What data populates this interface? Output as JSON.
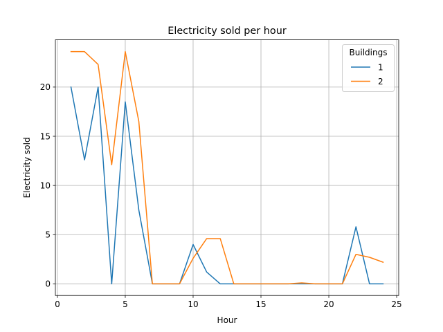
{
  "chart_data": {
    "type": "line",
    "title": "Electricity sold per hour",
    "xlabel": "Hour",
    "ylabel": "Electricity sold",
    "xlim": [
      -0.15,
      25.15
    ],
    "ylim": [
      -1.18,
      24.8
    ],
    "xticks": [
      0,
      5,
      10,
      15,
      20,
      25
    ],
    "yticks": [
      0,
      5,
      10,
      15,
      20
    ],
    "grid": true,
    "legend": {
      "title": "Buildings",
      "placement": "upper right"
    },
    "x": [
      1,
      2,
      3,
      4,
      5,
      6,
      7,
      8,
      9,
      10,
      11,
      12,
      13,
      14,
      15,
      16,
      17,
      18,
      19,
      20,
      21,
      22,
      23,
      24
    ],
    "series": [
      {
        "name": "1",
        "color": "#1f77b4",
        "values": [
          20.0,
          12.6,
          20.0,
          0.0,
          18.5,
          7.5,
          0.0,
          0.0,
          0.0,
          4.0,
          1.2,
          0.0,
          0.0,
          0.0,
          0.0,
          0.0,
          0.0,
          0.0,
          0.0,
          0.0,
          0.0,
          5.8,
          0.0,
          0.0
        ]
      },
      {
        "name": "2",
        "color": "#ff7f0e",
        "values": [
          23.6,
          23.6,
          22.3,
          12.1,
          23.6,
          16.5,
          0.0,
          0.0,
          0.0,
          2.6,
          4.6,
          4.6,
          0.0,
          0.0,
          0.0,
          0.0,
          0.0,
          0.1,
          0.0,
          0.0,
          0.0,
          3.0,
          2.7,
          2.2
        ]
      }
    ]
  }
}
